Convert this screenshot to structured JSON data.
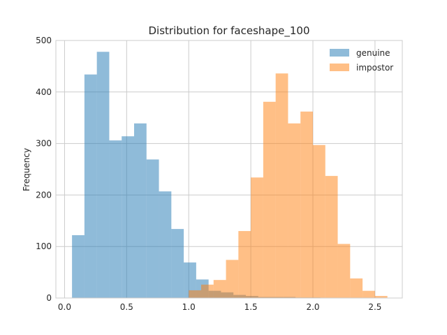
{
  "chart_data": {
    "type": "bar",
    "title": "Distribution for faceshape_100",
    "xlabel": "",
    "ylabel": "Frequency",
    "xlim": [
      -0.07,
      2.72
    ],
    "ylim": [
      0,
      500
    ],
    "xticks": [
      0.0,
      0.5,
      1.0,
      1.5,
      2.0,
      2.5
    ],
    "xtick_labels": [
      "0.0",
      "0.5",
      "1.0",
      "1.5",
      "2.0",
      "2.5"
    ],
    "yticks": [
      0,
      100,
      200,
      300,
      400,
      500
    ],
    "ytick_labels": [
      "0",
      "100",
      "200",
      "300",
      "400",
      "500"
    ],
    "grid": true,
    "legend_position": "top-right",
    "series": [
      {
        "name": "genuine",
        "color": "#1f77b4",
        "alpha": 0.5,
        "bin_edges": [
          0.06,
          0.16,
          0.26,
          0.36,
          0.46,
          0.56,
          0.66,
          0.76,
          0.86,
          0.96,
          1.06,
          1.16,
          1.26,
          1.36,
          1.46,
          1.56,
          1.66,
          1.76,
          1.86,
          1.96,
          2.06
        ],
        "counts": [
          122,
          434,
          478,
          306,
          314,
          339,
          269,
          207,
          134,
          69,
          36,
          14,
          11,
          6,
          4,
          2,
          2,
          2,
          1,
          1
        ]
      },
      {
        "name": "impostor",
        "color": "#ff7f0e",
        "alpha": 0.5,
        "bin_edges": [
          1.0,
          1.1,
          1.2,
          1.3,
          1.4,
          1.5,
          1.6,
          1.7,
          1.8,
          1.9,
          2.0,
          2.1,
          2.2,
          2.3,
          2.4,
          2.5,
          2.6
        ],
        "counts": [
          15,
          26,
          35,
          74,
          130,
          234,
          381,
          436,
          339,
          362,
          297,
          237,
          105,
          38,
          14,
          4
        ]
      }
    ]
  }
}
